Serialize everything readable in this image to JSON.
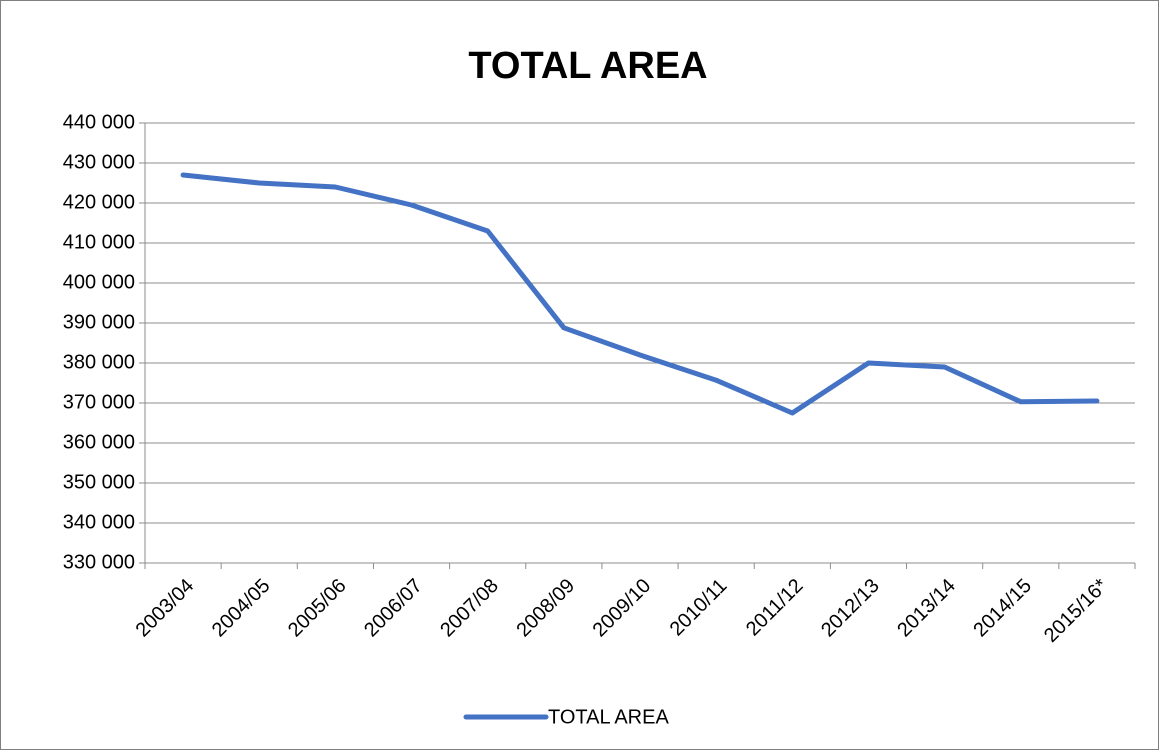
{
  "chart_data": {
    "type": "line",
    "title": "TOTAL AREA",
    "categories": [
      "2003/04",
      "2004/05",
      "2005/06",
      "2006/07",
      "2007/08",
      "2008/09",
      "2009/10",
      "2010/11",
      "2011/12",
      "2012/13",
      "2013/14",
      "2014/15",
      "2015/16*"
    ],
    "series": [
      {
        "name": "TOTAL AREA",
        "color": "#4472c4",
        "values": [
          427000,
          425000,
          424000,
          419500,
          413000,
          388800,
          382000,
          375700,
          367500,
          380000,
          379000,
          370300,
          370500
        ]
      }
    ],
    "ylim": [
      330000,
      440000
    ],
    "yticks": [
      {
        "value": 330000,
        "label": "330 000"
      },
      {
        "value": 340000,
        "label": "340 000"
      },
      {
        "value": 350000,
        "label": "350 000"
      },
      {
        "value": 360000,
        "label": "360 000"
      },
      {
        "value": 370000,
        "label": "370 000"
      },
      {
        "value": 380000,
        "label": "380 000"
      },
      {
        "value": 390000,
        "label": "390 000"
      },
      {
        "value": 400000,
        "label": "400 000"
      },
      {
        "value": 410000,
        "label": "410 000"
      },
      {
        "value": 420000,
        "label": "420 000"
      },
      {
        "value": 430000,
        "label": "430 000"
      },
      {
        "value": 440000,
        "label": "440 000"
      }
    ],
    "grid": true,
    "legend": "bottom"
  }
}
